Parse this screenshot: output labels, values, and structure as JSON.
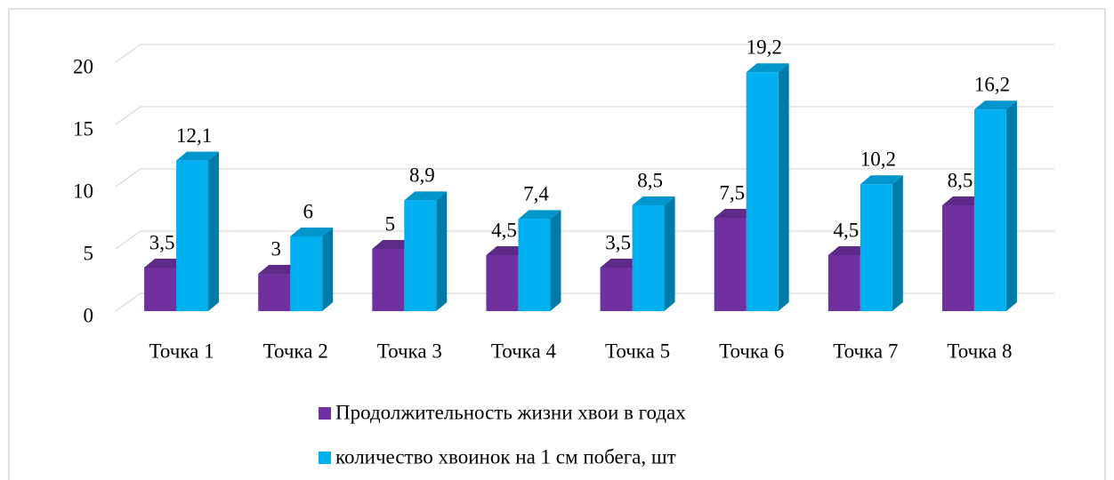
{
  "chart_data": {
    "type": "bar3d",
    "categories": [
      "Точка 1",
      "Точка 2",
      "Точка 3",
      "Точка 4",
      "Точка 5",
      "Точка 6",
      "Точка 7",
      "Точка 8"
    ],
    "series": [
      {
        "name": "Продолжительность жизни хвои в годах",
        "color": "#7030a0",
        "values": [
          3.5,
          3,
          5,
          4.5,
          3.5,
          7.5,
          4.5,
          8.5
        ],
        "value_labels": [
          "3,5",
          "3",
          "5",
          "4,5",
          "3,5",
          "7,5",
          "4,5",
          "8,5"
        ]
      },
      {
        "name": "количество хвоинок на 1 см побега, шт",
        "color": "#00b0f0",
        "values": [
          12.1,
          6,
          8.9,
          7.4,
          8.5,
          19.2,
          10.2,
          16.2
        ],
        "value_labels": [
          "12,1",
          "6",
          "8,9",
          "7,4",
          "8,5",
          "19,2",
          "10,2",
          "16,2"
        ]
      }
    ],
    "ylim": [
      0,
      20
    ],
    "yticks": [
      0,
      5,
      10,
      15,
      20
    ],
    "grid": true,
    "legend": "bottom"
  }
}
